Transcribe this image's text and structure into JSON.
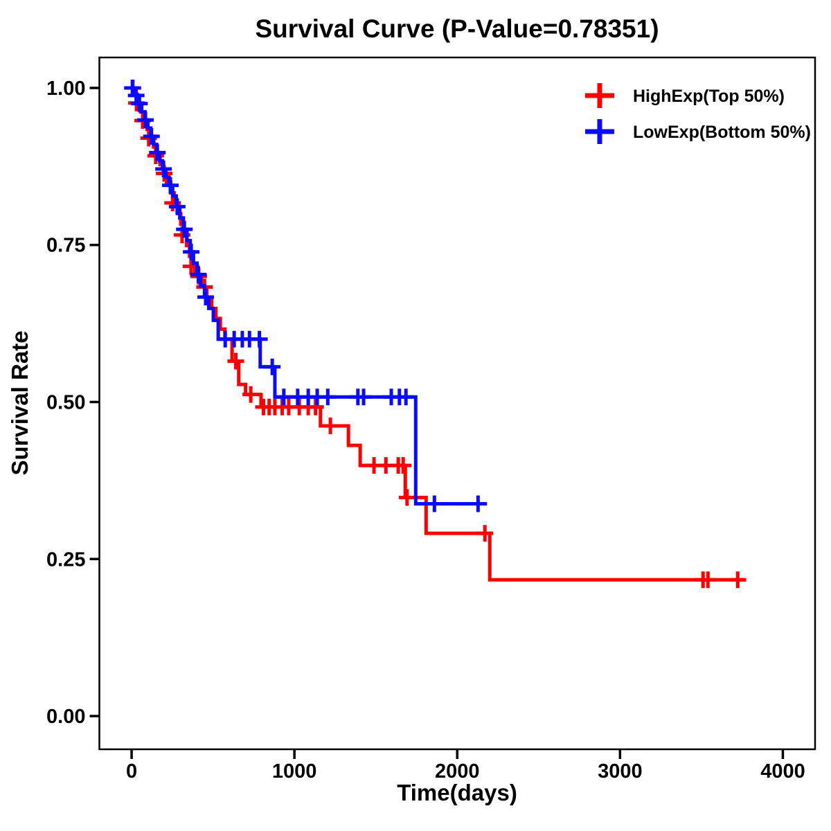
{
  "title": "Survival Curve (P-Value=0.78351)",
  "p_value": "0.78351",
  "chart_data": {
    "type": "line",
    "subtype": "kaplan-meier-step-survival",
    "title": "Survival Curve (P-Value=0.78351)",
    "xlabel": "Time(days)",
    "ylabel": "Survival Rate",
    "xlim": [
      -198,
      4198
    ],
    "ylim": [
      -0.0529,
      1.0485
    ],
    "xticks": [
      0,
      1000,
      2000,
      3000,
      4000
    ],
    "xtick_labels": [
      "0",
      "1000",
      "2000",
      "3000",
      "4000"
    ],
    "yticks": [
      0.0,
      0.25,
      0.5,
      0.75,
      1.0
    ],
    "ytick_labels": [
      "0.00",
      "0.25",
      "0.50",
      "0.75",
      "1.00"
    ],
    "grid": false,
    "legend_position": "top-right",
    "censor_marker": "+",
    "series": [
      {
        "name": "HighExp(Top 50%)",
        "color": "#FF0000",
        "end_time": 3774,
        "steps": [
          [
            0,
            1.0
          ],
          [
            18,
            0.99
          ],
          [
            35,
            0.976
          ],
          [
            55,
            0.962
          ],
          [
            75,
            0.948
          ],
          [
            95,
            0.934
          ],
          [
            115,
            0.92
          ],
          [
            135,
            0.906
          ],
          [
            155,
            0.892
          ],
          [
            175,
            0.878
          ],
          [
            195,
            0.864
          ],
          [
            215,
            0.85
          ],
          [
            240,
            0.833
          ],
          [
            262,
            0.817
          ],
          [
            283,
            0.8
          ],
          [
            302,
            0.783
          ],
          [
            320,
            0.766
          ],
          [
            338,
            0.749
          ],
          [
            356,
            0.732
          ],
          [
            372,
            0.716
          ],
          [
            388,
            0.7
          ],
          [
            430,
            0.683
          ],
          [
            462,
            0.666
          ],
          [
            492,
            0.649
          ],
          [
            518,
            0.633
          ],
          [
            545,
            0.616
          ],
          [
            573,
            0.6
          ],
          [
            617,
            0.565
          ],
          [
            658,
            0.528
          ],
          [
            700,
            0.512
          ],
          [
            795,
            0.492
          ],
          [
            1160,
            0.462
          ],
          [
            1332,
            0.431
          ],
          [
            1404,
            0.399
          ],
          [
            1681,
            0.348
          ],
          [
            1809,
            0.291
          ],
          [
            2200,
            0.217
          ]
        ],
        "censors": [
          [
            8,
            1.0
          ],
          [
            30,
            0.976
          ],
          [
            68,
            0.948
          ],
          [
            105,
            0.92
          ],
          [
            148,
            0.892
          ],
          [
            200,
            0.864
          ],
          [
            252,
            0.817
          ],
          [
            310,
            0.766
          ],
          [
            365,
            0.716
          ],
          [
            412,
            0.7
          ],
          [
            448,
            0.683
          ],
          [
            640,
            0.565
          ],
          [
            732,
            0.512
          ],
          [
            810,
            0.492
          ],
          [
            845,
            0.492
          ],
          [
            880,
            0.492
          ],
          [
            925,
            0.492
          ],
          [
            965,
            0.492
          ],
          [
            1030,
            0.492
          ],
          [
            1085,
            0.492
          ],
          [
            1130,
            0.492
          ],
          [
            1221,
            0.462
          ],
          [
            1489,
            0.399
          ],
          [
            1562,
            0.399
          ],
          [
            1638,
            0.399
          ],
          [
            1668,
            0.399
          ],
          [
            1692,
            0.348
          ],
          [
            2170,
            0.291
          ],
          [
            3510,
            0.217
          ],
          [
            3540,
            0.217
          ],
          [
            3723,
            0.217
          ]
        ]
      },
      {
        "name": "LowExp(Bottom 50%)",
        "color": "#0A0AFF",
        "end_time": 2183,
        "steps": [
          [
            0,
            1.0
          ],
          [
            22,
            0.988
          ],
          [
            42,
            0.975
          ],
          [
            62,
            0.962
          ],
          [
            82,
            0.949
          ],
          [
            100,
            0.936
          ],
          [
            118,
            0.923
          ],
          [
            136,
            0.91
          ],
          [
            154,
            0.897
          ],
          [
            172,
            0.884
          ],
          [
            190,
            0.871
          ],
          [
            210,
            0.858
          ],
          [
            230,
            0.845
          ],
          [
            252,
            0.828
          ],
          [
            274,
            0.811
          ],
          [
            296,
            0.793
          ],
          [
            318,
            0.775
          ],
          [
            340,
            0.757
          ],
          [
            360,
            0.739
          ],
          [
            380,
            0.721
          ],
          [
            402,
            0.703
          ],
          [
            424,
            0.685
          ],
          [
            448,
            0.667
          ],
          [
            474,
            0.649
          ],
          [
            502,
            0.63
          ],
          [
            532,
            0.6
          ],
          [
            790,
            0.556
          ],
          [
            880,
            0.508
          ],
          [
            1745,
            0.338
          ]
        ],
        "censors": [
          [
            5,
            1.0
          ],
          [
            28,
            0.988
          ],
          [
            48,
            0.975
          ],
          [
            85,
            0.949
          ],
          [
            122,
            0.923
          ],
          [
            158,
            0.897
          ],
          [
            196,
            0.871
          ],
          [
            238,
            0.845
          ],
          [
            280,
            0.811
          ],
          [
            324,
            0.775
          ],
          [
            366,
            0.739
          ],
          [
            410,
            0.703
          ],
          [
            455,
            0.667
          ],
          [
            575,
            0.6
          ],
          [
            630,
            0.6
          ],
          [
            680,
            0.6
          ],
          [
            724,
            0.6
          ],
          [
            785,
            0.6
          ],
          [
            864,
            0.556
          ],
          [
            935,
            0.508
          ],
          [
            1020,
            0.508
          ],
          [
            1085,
            0.508
          ],
          [
            1140,
            0.508
          ],
          [
            1205,
            0.508
          ],
          [
            1390,
            0.508
          ],
          [
            1425,
            0.508
          ],
          [
            1595,
            0.508
          ],
          [
            1645,
            0.508
          ],
          [
            1685,
            0.508
          ],
          [
            1860,
            0.338
          ],
          [
            2128,
            0.338
          ]
        ]
      }
    ]
  }
}
